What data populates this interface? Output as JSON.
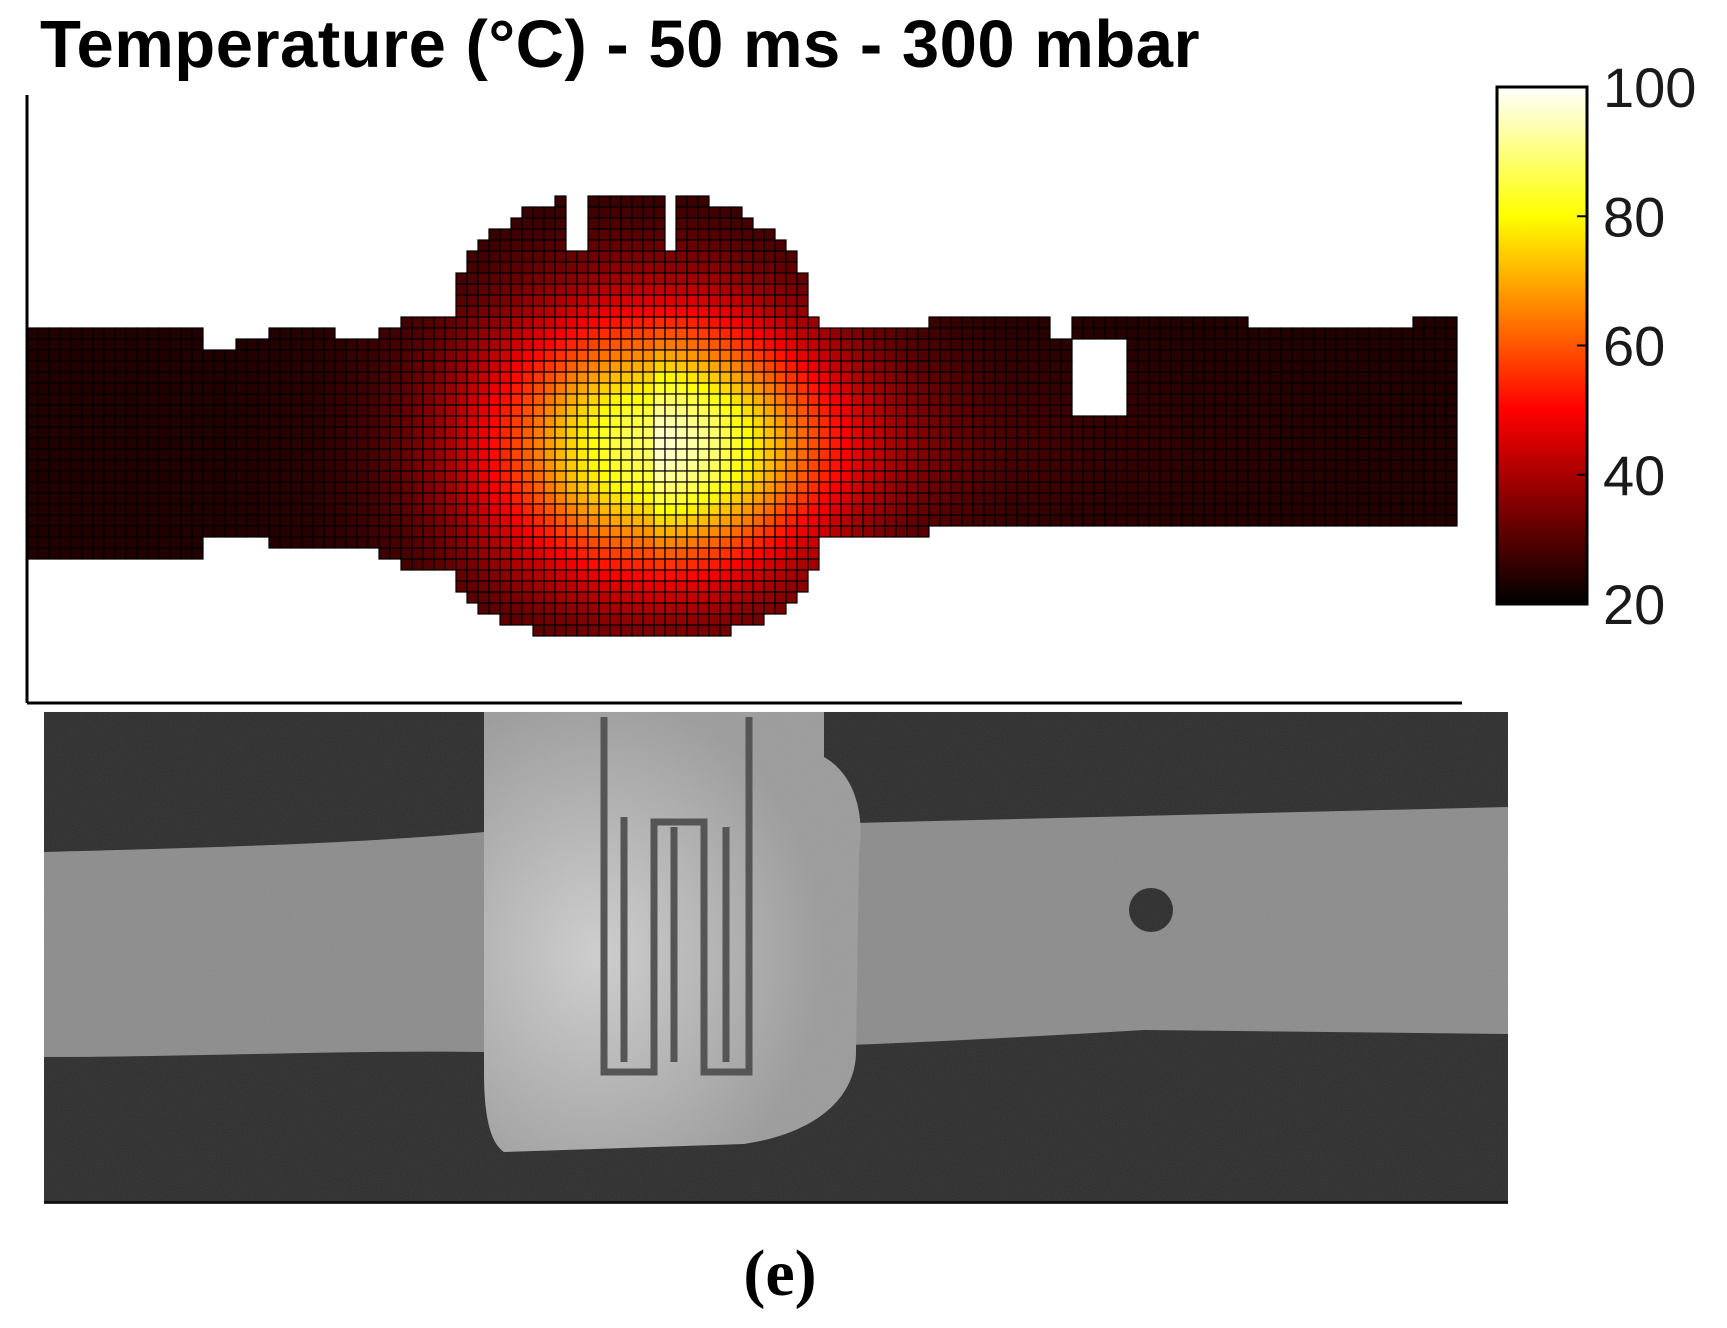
{
  "title": "Temperature (°C) - 50 ms - 300 mbar",
  "panel_label": "(e)",
  "chart_data": {
    "type": "heatmap",
    "title": "Temperature (°C) - 50 ms - 300 mbar",
    "xlabel": "",
    "ylabel": "",
    "colormap": "hot",
    "colorbar": {
      "range": [
        20,
        100
      ],
      "ticks": [
        20,
        40,
        60,
        80,
        100
      ],
      "ticklabels": [
        "20",
        "40",
        "60",
        "80",
        "100"
      ],
      "placement": "right"
    },
    "grid": true,
    "peak_value": 88,
    "background_value": 24,
    "hotspot_max_value": 85,
    "description_units": "°C"
  },
  "photo": {
    "type": "grayscale-photograph",
    "colors": {
      "background": "#262626",
      "tube": "#8c8c8c",
      "sleeve": "#a8a8a8"
    }
  }
}
